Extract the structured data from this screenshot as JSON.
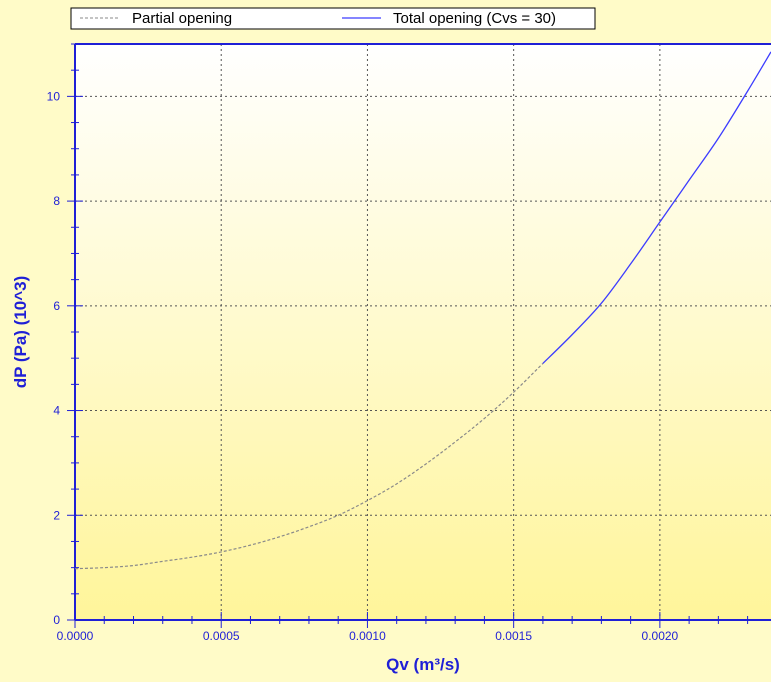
{
  "colors": {
    "background": "#fffbc8",
    "plot_top": "#ffffff",
    "plot_bottom": "#fff59a",
    "axis": "#1f1fd6",
    "grid": "#555555",
    "total_line": "#3c3cff",
    "partial_line": "#8a8a8a"
  },
  "chart_data": {
    "type": "line",
    "xlabel": "Qv (m³/s)",
    "ylabel": "dP (Pa) (10^3)",
    "xlim": [
      0,
      0.00238
    ],
    "ylim": [
      0,
      11.0
    ],
    "grid": true,
    "legend_position": "top",
    "x_ticks": [
      "0.0000",
      "0.0005",
      "0.0010",
      "0.0015",
      "0.0020"
    ],
    "x_tick_values": [
      0,
      0.0005,
      0.001,
      0.0015,
      0.002
    ],
    "y_ticks": [
      "0",
      "2",
      "4",
      "6",
      "8",
      "10"
    ],
    "y_tick_values": [
      0,
      2,
      4,
      6,
      8,
      10
    ],
    "series": [
      {
        "name": "Partial opening",
        "style": "dashed",
        "x": [
          0,
          0.0001,
          0.0002,
          0.0003,
          0.0004,
          0.0005,
          0.0006,
          0.0007,
          0.0008,
          0.0009,
          0.001,
          0.0011,
          0.0012,
          0.0013,
          0.0014,
          0.0015,
          0.0016
        ],
        "y": [
          0.98,
          1.0,
          1.04,
          1.12,
          1.2,
          1.3,
          1.43,
          1.59,
          1.78,
          2.0,
          2.28,
          2.6,
          2.98,
          3.4,
          3.85,
          4.35,
          4.9
        ]
      },
      {
        "name": "Total opening (Cvs = 30)",
        "style": "solid",
        "x": [
          0.0016,
          0.0017,
          0.0018,
          0.0019,
          0.002,
          0.0021,
          0.0022,
          0.0023,
          0.00238
        ],
        "y": [
          4.9,
          5.45,
          6.05,
          6.8,
          7.6,
          8.4,
          9.2,
          10.1,
          10.85
        ]
      }
    ]
  }
}
